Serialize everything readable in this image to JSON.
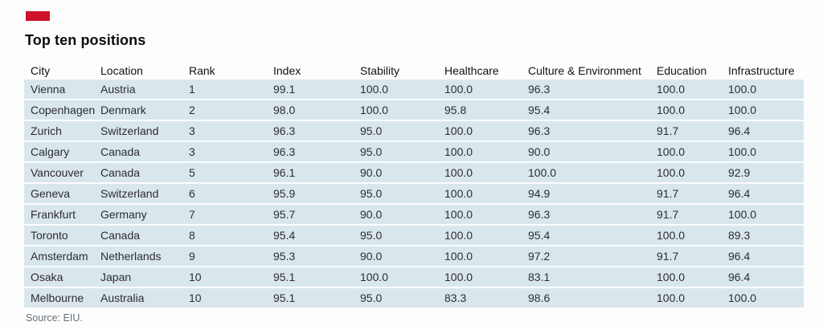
{
  "title": "Top ten positions",
  "source": "Source: EIU.",
  "colors": {
    "brand_red": "#cf132b",
    "row_bg": "#d9e7ed",
    "header_text": "#111111",
    "cell_text": "#2d2d2d",
    "source_text": "#64707a",
    "page_bg": "#fdfdfd"
  },
  "chart_data": {
    "type": "table",
    "title": "Top ten positions",
    "columns": [
      "City",
      "Location",
      "Rank",
      "Index",
      "Stability",
      "Healthcare",
      "Culture & Environment",
      "Education",
      "Infrastructure"
    ],
    "rows": [
      [
        "Vienna",
        "Austria",
        "1",
        "99.1",
        "100.0",
        "100.0",
        "96.3",
        "100.0",
        "100.0"
      ],
      [
        "Copenhagen",
        "Denmark",
        "2",
        "98.0",
        "100.0",
        "95.8",
        "95.4",
        "100.0",
        "100.0"
      ],
      [
        "Zurich",
        "Switzerland",
        "3",
        "96.3",
        "95.0",
        "100.0",
        "96.3",
        "91.7",
        "96.4"
      ],
      [
        "Calgary",
        "Canada",
        "3",
        "96.3",
        "95.0",
        "100.0",
        "90.0",
        "100.0",
        "100.0"
      ],
      [
        "Vancouver",
        "Canada",
        "5",
        "96.1",
        "90.0",
        "100.0",
        "100.0",
        "100.0",
        "92.9"
      ],
      [
        "Geneva",
        "Switzerland",
        "6",
        "95.9",
        "95.0",
        "100.0",
        "94.9",
        "91.7",
        "96.4"
      ],
      [
        "Frankfurt",
        "Germany",
        "7",
        "95.7",
        "90.0",
        "100.0",
        "96.3",
        "91.7",
        "100.0"
      ],
      [
        "Toronto",
        "Canada",
        "8",
        "95.4",
        "95.0",
        "100.0",
        "95.4",
        "100.0",
        "89.3"
      ],
      [
        "Amsterdam",
        "Netherlands",
        "9",
        "95.3",
        "90.0",
        "100.0",
        "97.2",
        "91.7",
        "96.4"
      ],
      [
        "Osaka",
        "Japan",
        "10",
        "95.1",
        "100.0",
        "100.0",
        "83.1",
        "100.0",
        "96.4"
      ],
      [
        "Melbourne",
        "Australia",
        "10",
        "95.1",
        "95.0",
        "83.3",
        "98.6",
        "100.0",
        "100.0"
      ]
    ],
    "source": "Source: EIU.",
    "layout": {
      "grid": "off",
      "row_striping": "uniform light-blue rows with white separators"
    }
  }
}
